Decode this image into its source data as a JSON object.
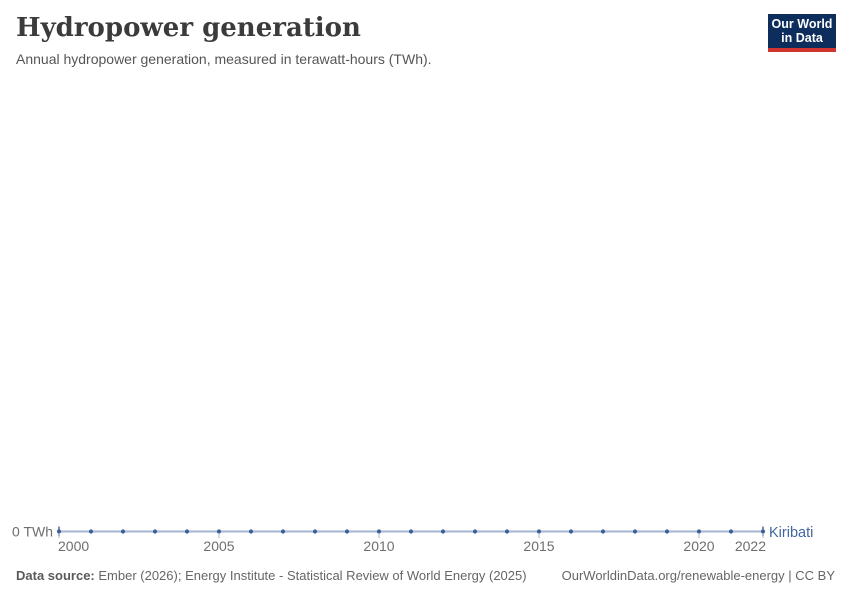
{
  "header": {
    "title": "Hydropower generation",
    "subtitle": "Annual hydropower generation, measured in terawatt-hours (TWh)."
  },
  "logo": {
    "line1": "Our World",
    "line2": "in Data",
    "bg_color": "#0d2e5c",
    "accent_color": "#d0342c"
  },
  "chart_data": {
    "type": "line",
    "title": "Hydropower generation",
    "unit": "TWh",
    "x": [
      2000,
      2001,
      2002,
      2003,
      2004,
      2005,
      2006,
      2007,
      2008,
      2009,
      2010,
      2011,
      2012,
      2013,
      2014,
      2015,
      2016,
      2017,
      2018,
      2019,
      2020,
      2021,
      2022
    ],
    "series": [
      {
        "name": "Kiribati",
        "values": [
          0,
          0,
          0,
          0,
          0,
          0,
          0,
          0,
          0,
          0,
          0,
          0,
          0,
          0,
          0,
          0,
          0,
          0,
          0,
          0,
          0,
          0,
          0
        ]
      }
    ],
    "x_tick_labels": [
      "2000",
      "2005",
      "2010",
      "2015",
      "2020",
      "2022"
    ],
    "y_axis": {
      "tick_label": "0 TWh",
      "value": 0
    },
    "xlim": [
      2000,
      2022
    ],
    "ylim": [
      0,
      0
    ],
    "grid": false,
    "legend": "end-of-line entity label",
    "colors": {
      "line": "#a4b6d4",
      "marker": "#3f5e99",
      "entity_label": "#4166a0",
      "axis_tick": "#a9b8d2",
      "axis_text": "#6e6e6e"
    }
  },
  "footer": {
    "source_label": "Data source:",
    "source_text": " Ember (2026); Energy Institute - Statistical Review of World Energy (2025)",
    "note": "OurWorldinData.org/renewable-energy | CC BY"
  }
}
